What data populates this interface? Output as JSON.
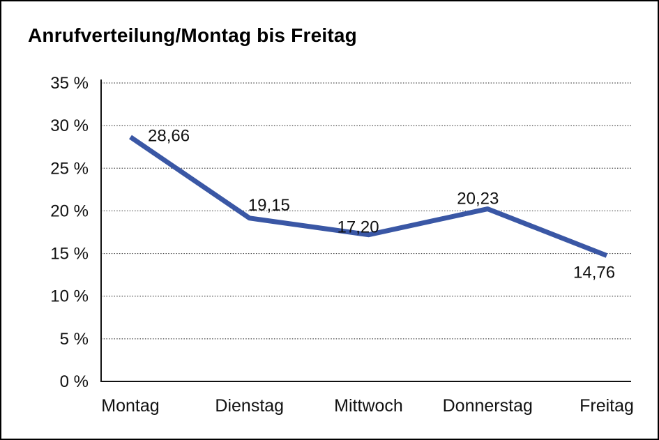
{
  "page": {
    "title": "Anrufverteilung/Montag bis Freitag"
  },
  "colors": {
    "line": "#3A57A5",
    "grid": "#4a4a4a",
    "axis": "#111111",
    "text": "#111111",
    "background": "#ffffff",
    "border": "#000000"
  },
  "chart_data": {
    "type": "line",
    "title": "Anrufverteilung/Montag bis Freitag",
    "categories": [
      "Montag",
      "Dienstag",
      "Mittwoch",
      "Donnerstag",
      "Freitag"
    ],
    "series": [
      {
        "name": "Anrufverteilung",
        "values": [
          28.66,
          19.15,
          17.2,
          20.23,
          14.76
        ]
      }
    ],
    "point_labels": [
      "28,66",
      "19,15",
      "17,20",
      "20,23",
      "14,76"
    ],
    "xlabel": "",
    "ylabel": "",
    "y_ticks": [
      "35 %",
      "30 %",
      "25 %",
      "20 %",
      "15 %",
      "10 %",
      "5 %",
      "0 %"
    ],
    "ylim": [
      0,
      35
    ],
    "y_step": 5,
    "grid": "horizontal-dotted",
    "legend": "none",
    "decimal_separator": ","
  }
}
